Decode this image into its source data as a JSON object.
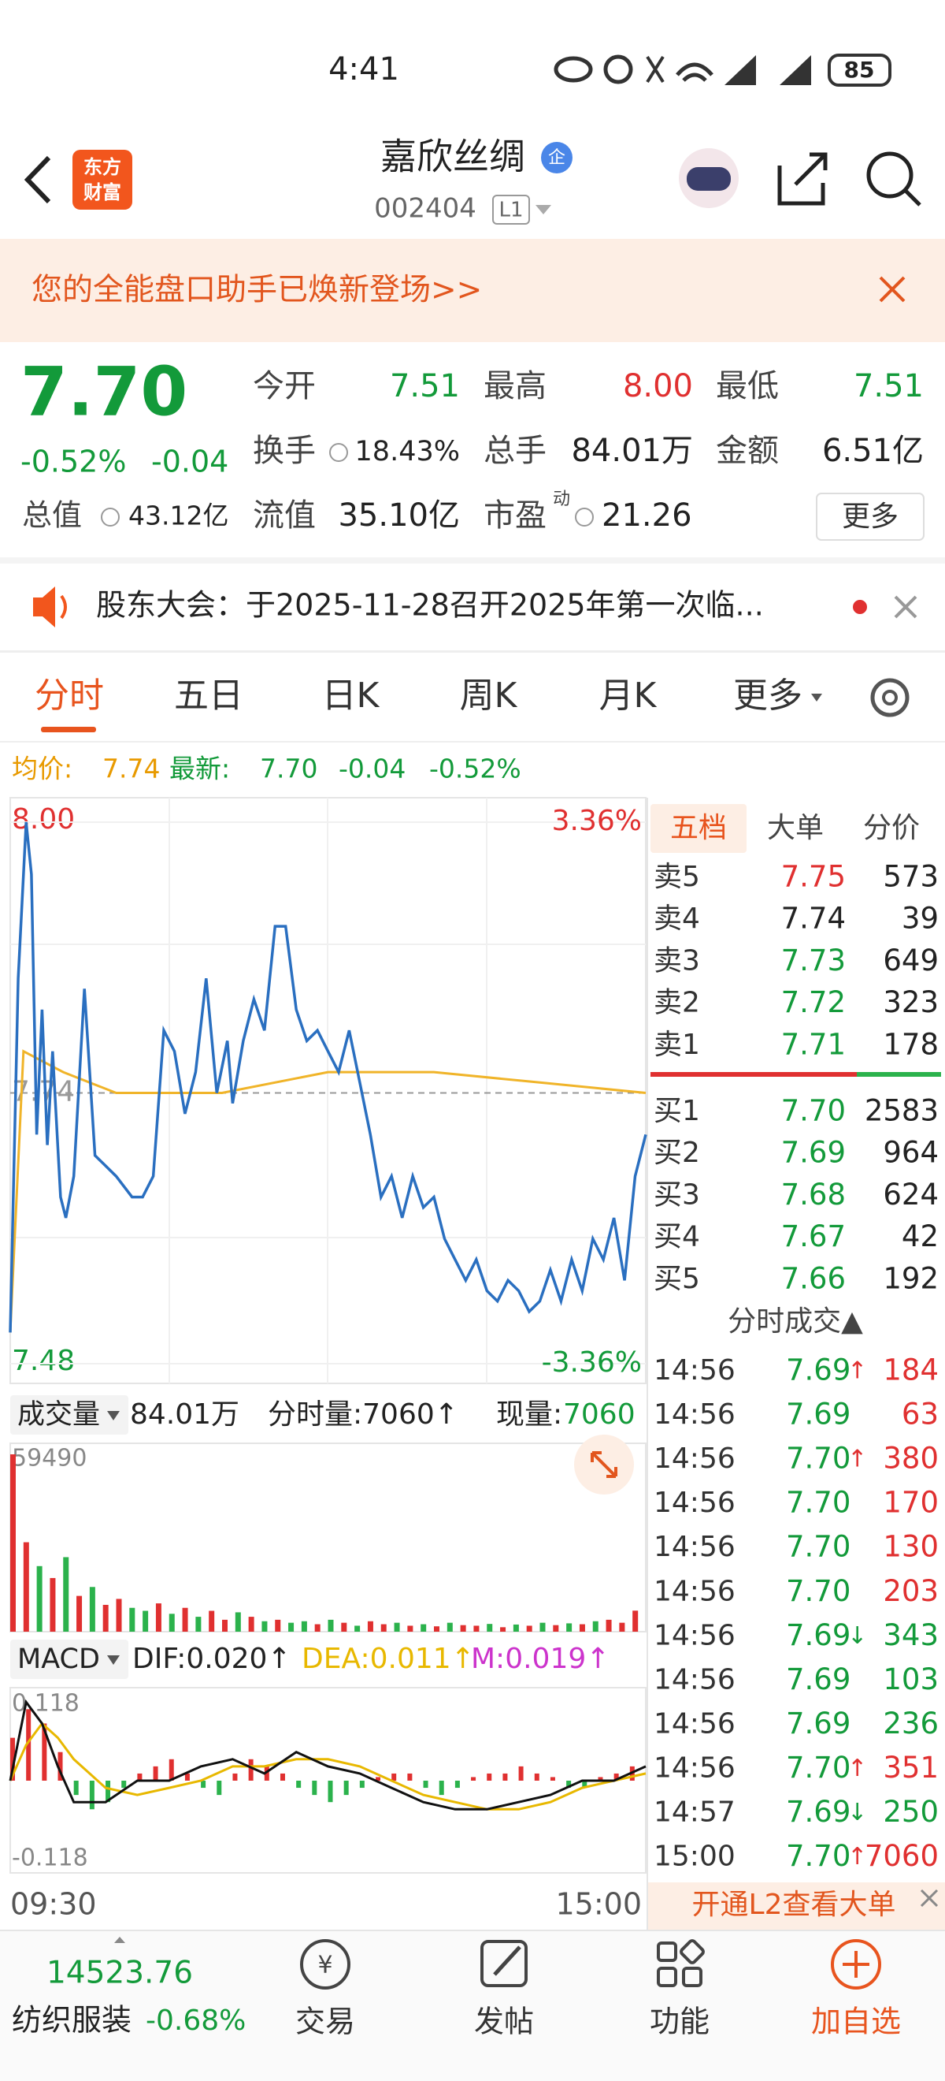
{
  "status_bar": {
    "time": "4:41",
    "battery": "85"
  },
  "header": {
    "logo": [
      "东方",
      "财富"
    ],
    "title": "嘉欣丝绸",
    "badge": "企",
    "code": "002404",
    "level": "L1"
  },
  "banner": {
    "text": "您的全能盘口助手已焕新登场>>"
  },
  "quote": {
    "price": "7.70",
    "change_pct": "-0.52%",
    "change": "-0.04",
    "fields": [
      {
        "label": "今开",
        "value": "7.51",
        "color": "#139a3a"
      },
      {
        "label": "最高",
        "value": "8.00",
        "color": "#e03030"
      },
      {
        "label": "最低",
        "value": "7.51",
        "color": "#139a3a"
      },
      {
        "label": "换手",
        "value": "18.43%"
      },
      {
        "label": "总手",
        "value": "84.01万"
      },
      {
        "label": "金额",
        "value": "6.51亿"
      },
      {
        "label": "总值",
        "value": "43.12亿"
      },
      {
        "label": "流值",
        "value": "35.10亿"
      },
      {
        "label": "市盈",
        "sup": "动",
        "value": "21.26"
      }
    ],
    "more": "更多"
  },
  "notice": {
    "text": "股东大会：于2025-11-28召开2025年第一次临..."
  },
  "tabs": [
    "分时",
    "五日",
    "日K",
    "周K",
    "月K",
    "更多"
  ],
  "summary": {
    "avg_label": "均价:",
    "avg": "7.74",
    "last_label": "最新:",
    "last": "7.70",
    "change": "-0.04",
    "change_pct": "-0.52%"
  },
  "intraday": {
    "xlim": [
      0,
      240
    ],
    "xticks": [
      {
        "value": 0,
        "label": "09:30"
      },
      {
        "value": 240,
        "label": "15:00"
      }
    ],
    "ylim": [
      7.48,
      8.0
    ],
    "yticks": [
      {
        "value": 8.0,
        "label": "8.00"
      },
      7.74,
      7.48
    ],
    "pct_ticks": [
      {
        "value": 8.0,
        "label": "3.36%"
      },
      {
        "value": 7.48,
        "label": "-3.36%"
      }
    ],
    "minute": [
      0,
      3,
      6,
      8,
      10,
      12,
      14,
      16,
      19,
      21,
      24,
      28,
      32,
      36,
      40,
      46,
      50,
      54,
      58,
      62,
      66,
      70,
      74,
      78,
      82,
      84,
      88,
      92,
      96,
      100,
      104,
      108,
      112,
      116,
      120,
      124,
      128,
      132,
      136,
      140,
      144,
      148,
      152,
      156,
      160,
      164,
      168,
      172,
      176,
      180,
      184,
      188,
      192,
      196,
      200,
      204,
      208,
      212,
      216,
      220,
      224,
      228,
      232,
      236,
      240
    ],
    "price": [
      7.51,
      7.85,
      8.0,
      7.95,
      7.7,
      7.82,
      7.69,
      7.78,
      7.64,
      7.62,
      7.66,
      7.84,
      7.68,
      7.67,
      7.66,
      7.64,
      7.64,
      7.66,
      7.8,
      7.78,
      7.72,
      7.76,
      7.85,
      7.74,
      7.79,
      7.73,
      7.79,
      7.83,
      7.8,
      7.9,
      7.9,
      7.82,
      7.79,
      7.8,
      7.78,
      7.76,
      7.8,
      7.75,
      7.7,
      7.64,
      7.66,
      7.62,
      7.66,
      7.63,
      7.64,
      7.6,
      7.58,
      7.56,
      7.58,
      7.55,
      7.54,
      7.56,
      7.55,
      7.53,
      7.54,
      7.57,
      7.54,
      7.58,
      7.55,
      7.6,
      7.58,
      7.62,
      7.56,
      7.66,
      7.7
    ],
    "avg_minute": [
      0,
      5,
      20,
      40,
      80,
      120,
      160,
      200,
      240
    ],
    "avg": [
      7.51,
      7.78,
      7.76,
      7.74,
      7.74,
      7.76,
      7.76,
      7.75,
      7.74
    ],
    "price_color": "#2a6fc0",
    "avg_color": "#f0b429"
  },
  "volume": {
    "label": "成交量",
    "total": "84.01万",
    "tick_label": "分时量:7060↑",
    "now_label": "现量:",
    "now": "7060",
    "ylim": [
      0,
      59490
    ],
    "yticks": [
      59490
    ],
    "minute": [
      0,
      5,
      10,
      15,
      20,
      25,
      30,
      35,
      40,
      45,
      50,
      55,
      60,
      65,
      70,
      75,
      80,
      85,
      90,
      95,
      100,
      105,
      110,
      115,
      120,
      125,
      130,
      135,
      140,
      145,
      150,
      155,
      160,
      165,
      170,
      175,
      180,
      185,
      190,
      195,
      200,
      205,
      210,
      215,
      220,
      225,
      230,
      235
    ],
    "values": [
      59490,
      30000,
      22000,
      18000,
      25000,
      12000,
      15000,
      9000,
      11000,
      8000,
      7000,
      9500,
      6000,
      8000,
      5000,
      7000,
      4000,
      6500,
      5000,
      3500,
      4000,
      3000,
      3500,
      2500,
      4000,
      3000,
      2000,
      3500,
      2500,
      3000,
      2000,
      2500,
      1800,
      3000,
      2200,
      2000,
      2600,
      1500,
      2400,
      2000,
      3000,
      2200,
      2800,
      2500,
      3500,
      4000,
      3000,
      7060
    ],
    "up": [
      true,
      true,
      false,
      true,
      false,
      true,
      false,
      true,
      true,
      false,
      false,
      true,
      false,
      true,
      false,
      true,
      true,
      false,
      true,
      false,
      true,
      false,
      false,
      true,
      false,
      true,
      false,
      true,
      true,
      false,
      true,
      false,
      true,
      false,
      true,
      true,
      false,
      true,
      false,
      true,
      false,
      true,
      false,
      true,
      false,
      true,
      true,
      true
    ]
  },
  "macd": {
    "label": "MACD",
    "dif_label": "DIF:0.020↑",
    "dea_label": "DEA:0.011↑",
    "m_label": "M:0.019↑",
    "ylim": [
      -0.118,
      0.118
    ],
    "yticks": [
      0.118,
      -0.118
    ],
    "hist_minute": [
      0,
      6,
      12,
      18,
      24,
      30,
      36,
      42,
      48,
      54,
      60,
      66,
      72,
      78,
      84,
      90,
      96,
      102,
      108,
      114,
      120,
      126,
      132,
      138,
      144,
      150,
      156,
      162,
      168,
      174,
      180,
      186,
      192,
      198,
      204,
      210,
      216,
      222,
      228,
      234
    ],
    "hist": [
      0.06,
      0.1,
      0.08,
      0.04,
      -0.02,
      -0.04,
      -0.03,
      -0.01,
      0.01,
      0.02,
      0.03,
      0.01,
      -0.01,
      -0.02,
      0.01,
      0.03,
      0.02,
      0.01,
      -0.01,
      -0.02,
      -0.03,
      -0.02,
      -0.01,
      0.005,
      0.01,
      0.01,
      -0.01,
      -0.02,
      -0.01,
      0.005,
      0.01,
      0.01,
      0.02,
      0.01,
      0.005,
      -0.01,
      -0.01,
      0.005,
      0.01,
      0.02
    ],
    "line_minute": [
      0,
      6,
      12,
      18,
      24,
      36,
      48,
      60,
      72,
      84,
      96,
      108,
      120,
      132,
      144,
      156,
      168,
      180,
      192,
      204,
      216,
      228,
      240
    ],
    "dif": [
      0.0,
      0.11,
      0.08,
      0.02,
      -0.03,
      -0.03,
      0.0,
      0.0,
      0.02,
      0.03,
      0.01,
      0.04,
      0.02,
      0.01,
      -0.01,
      -0.03,
      -0.04,
      -0.04,
      -0.03,
      -0.02,
      0.0,
      0.0,
      0.02
    ],
    "dea": [
      0.0,
      0.05,
      0.08,
      0.06,
      0.03,
      -0.01,
      -0.02,
      -0.01,
      0.0,
      0.02,
      0.02,
      0.03,
      0.03,
      0.02,
      0.0,
      -0.02,
      -0.03,
      -0.04,
      -0.04,
      -0.03,
      -0.01,
      0.0,
      0.01
    ],
    "dif_color": "#111111",
    "dea_color": "#e8b800",
    "m_color": "#cc33cc"
  },
  "book": {
    "tabs": [
      "五档",
      "大单",
      "分价"
    ],
    "asks": [
      {
        "label": "卖5",
        "price": "7.75",
        "volume": "573",
        "color": "#e03030"
      },
      {
        "label": "卖4",
        "price": "7.74",
        "volume": "39",
        "color": "#222222"
      },
      {
        "label": "卖3",
        "price": "7.73",
        "volume": "649",
        "color": "#139a3a"
      },
      {
        "label": "卖2",
        "price": "7.72",
        "volume": "323",
        "color": "#139a3a"
      },
      {
        "label": "卖1",
        "price": "7.71",
        "volume": "178",
        "color": "#139a3a"
      }
    ],
    "bids": [
      {
        "label": "买1",
        "price": "7.70",
        "volume": "2583",
        "color": "#139a3a"
      },
      {
        "label": "买2",
        "price": "7.69",
        "volume": "964",
        "color": "#139a3a"
      },
      {
        "label": "买3",
        "price": "7.68",
        "volume": "624",
        "color": "#139a3a"
      },
      {
        "label": "买4",
        "price": "7.67",
        "volume": "42",
        "color": "#139a3a"
      },
      {
        "label": "买5",
        "price": "7.66",
        "volume": "192",
        "color": "#139a3a"
      }
    ]
  },
  "trades": {
    "title": "分时成交▲",
    "rows": [
      {
        "time": "14:56",
        "price": "7.69",
        "arrow": "↑",
        "volume": "184",
        "color": "#e03030"
      },
      {
        "time": "14:56",
        "price": "7.69",
        "volume": "63",
        "color": "#e03030"
      },
      {
        "time": "14:56",
        "price": "7.70",
        "arrow": "↑",
        "volume": "380",
        "color": "#e03030"
      },
      {
        "time": "14:56",
        "price": "7.70",
        "volume": "170",
        "color": "#e03030"
      },
      {
        "time": "14:56",
        "price": "7.70",
        "volume": "130",
        "color": "#e03030"
      },
      {
        "time": "14:56",
        "price": "7.70",
        "volume": "203",
        "color": "#e03030"
      },
      {
        "time": "14:56",
        "price": "7.69",
        "arrow": "↓",
        "volume": "343",
        "color": "#139a3a"
      },
      {
        "time": "14:56",
        "price": "7.69",
        "volume": "103",
        "color": "#139a3a"
      },
      {
        "time": "14:56",
        "price": "7.69",
        "volume": "236",
        "color": "#139a3a"
      },
      {
        "time": "14:56",
        "price": "7.70",
        "arrow": "↑",
        "volume": "351",
        "color": "#e03030"
      },
      {
        "time": "14:57",
        "price": "7.69",
        "arrow": "↓",
        "volume": "250",
        "color": "#139a3a"
      },
      {
        "time": "15:00",
        "price": "7.70",
        "arrow": "↑",
        "volume": "7060",
        "color": "#e03030"
      }
    ]
  },
  "l2_banner": "开通L2查看大单",
  "bottom": {
    "index": "14523.76",
    "sector": "纺织服装",
    "sector_change": "-0.68%",
    "items": [
      "交易",
      "发帖",
      "功能",
      "加自选"
    ]
  }
}
